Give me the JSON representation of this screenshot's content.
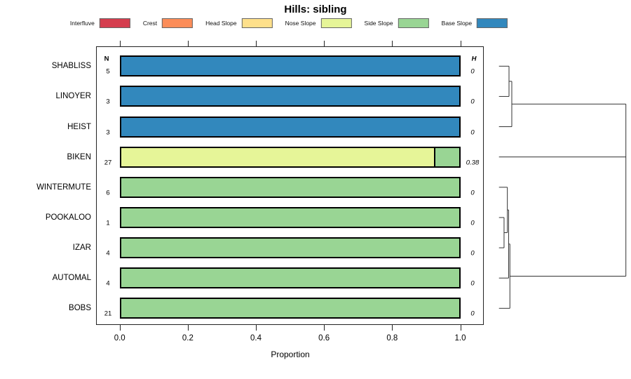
{
  "title": "Hills: sibling",
  "table": {
    "n_header": "N",
    "h_header": "H"
  },
  "axis": {
    "xlabel": "Proportion",
    "tick_labels": [
      "0.0",
      "0.2",
      "0.4",
      "0.6",
      "0.8",
      "1.0"
    ],
    "tick_values": [
      0.0,
      0.2,
      0.4,
      0.6,
      0.8,
      1.0
    ]
  },
  "legend": {
    "items": [
      {
        "label": "Interfluve",
        "color": "#D53E4F"
      },
      {
        "label": "Crest",
        "color": "#FC8D59"
      },
      {
        "label": "Head Slope",
        "color": "#FEE08B"
      },
      {
        "label": "Nose Slope",
        "color": "#E6F598"
      },
      {
        "label": "Side Slope",
        "color": "#99D594"
      },
      {
        "label": "Base Slope",
        "color": "#3288BD"
      }
    ]
  },
  "chart_data": {
    "type": "bar",
    "orientation": "horizontal-stacked",
    "title": "Hills: sibling",
    "xlabel": "Proportion",
    "xlim": [
      0,
      1.0
    ],
    "grid": false,
    "legend_position": "top",
    "classes": [
      "Interfluve",
      "Crest",
      "Head Slope",
      "Nose Slope",
      "Side Slope",
      "Base Slope"
    ],
    "colors": [
      "#D53E4F",
      "#FC8D59",
      "#FEE08B",
      "#E6F598",
      "#99D594",
      "#3288BD"
    ],
    "categories": [
      "SHABLISS",
      "LINOYER",
      "HEIST",
      "BIKEN",
      "WINTERMUTE",
      "POOKALOO",
      "IZAR",
      "AUTOMAL",
      "BOBS"
    ],
    "rows": [
      {
        "name": "SHABLISS",
        "n": "5",
        "h": "0",
        "segments": [
          {
            "class": "Base Slope",
            "value": 1.0
          }
        ]
      },
      {
        "name": "LINOYER",
        "n": "3",
        "h": "0",
        "segments": [
          {
            "class": "Base Slope",
            "value": 1.0
          }
        ]
      },
      {
        "name": "HEIST",
        "n": "3",
        "h": "0",
        "segments": [
          {
            "class": "Base Slope",
            "value": 1.0
          }
        ]
      },
      {
        "name": "BIKEN",
        "n": "27",
        "h": "0.38",
        "segments": [
          {
            "class": "Nose Slope",
            "value": 0.926
          },
          {
            "class": "Side Slope",
            "value": 0.074
          }
        ]
      },
      {
        "name": "WINTERMUTE",
        "n": "6",
        "h": "0",
        "segments": [
          {
            "class": "Side Slope",
            "value": 1.0
          }
        ]
      },
      {
        "name": "POOKALOO",
        "n": "1",
        "h": "0",
        "segments": [
          {
            "class": "Side Slope",
            "value": 1.0
          }
        ]
      },
      {
        "name": "IZAR",
        "n": "4",
        "h": "0",
        "segments": [
          {
            "class": "Side Slope",
            "value": 1.0
          }
        ]
      },
      {
        "name": "AUTOMAL",
        "n": "4",
        "h": "0",
        "segments": [
          {
            "class": "Side Slope",
            "value": 1.0
          }
        ]
      },
      {
        "name": "BOBS",
        "n": "21",
        "h": "0",
        "segments": [
          {
            "class": "Side Slope",
            "value": 1.0
          }
        ]
      }
    ],
    "dendrogram": {
      "h": 1.0,
      "children": [
        {
          "h": 0.101,
          "children": [
            {
              "h": 0.079,
              "children": [
                {
                  "leaf": "SHABLISS"
                },
                {
                  "leaf": "LINOYER"
                }
              ]
            },
            {
              "leaf": "HEIST"
            }
          ]
        },
        {
          "leaf": "BIKEN"
        },
        {
          "h": 0.086,
          "children": [
            {
              "h": 0.076,
              "children": [
                {
                  "h": 0.066,
                  "children": [
                    {
                      "leaf": "WINTERMUTE"
                    },
                    {
                      "h": 0.04,
                      "children": [
                        {
                          "leaf": "POOKALOO"
                        },
                        {
                          "leaf": "IZAR"
                        }
                      ]
                    }
                  ]
                },
                {
                  "leaf": "AUTOMAL"
                }
              ]
            },
            {
              "leaf": "BOBS"
            }
          ]
        }
      ]
    }
  }
}
